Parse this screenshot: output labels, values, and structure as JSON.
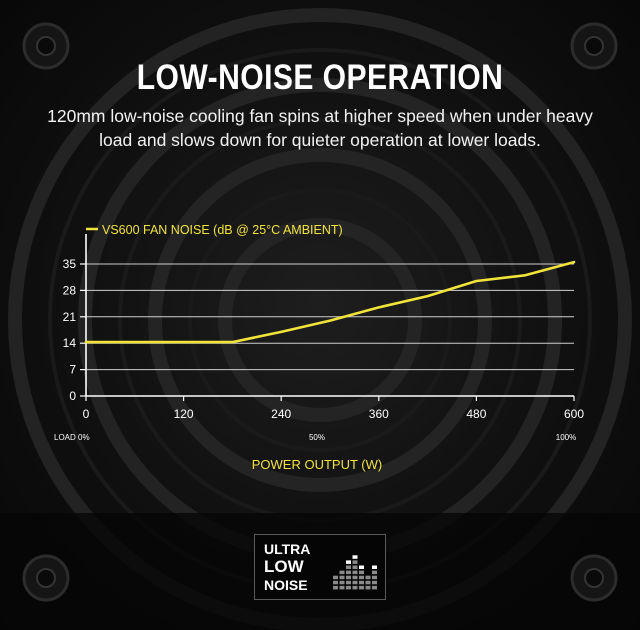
{
  "headline": "LOW-NOISE OPERATION",
  "description": "120mm low-noise cooling fan spins at higher speed when under heavy load and slows down for quieter operation at lower loads.",
  "badge": {
    "line1": "ULTRA",
    "line2": "LOW",
    "line3": "NOISE",
    "icon": "equalizer-bars-icon"
  },
  "colors": {
    "accent": "#f2e33a",
    "background": "#0c0c0c",
    "text": "#ffffff"
  },
  "chart_data": {
    "type": "line",
    "title": "VS600 FAN NOISE (dB @ 25°C AMBIENT)",
    "xlabel": "POWER OUTPUT (W)",
    "ylabel": "",
    "x": [
      0,
      60,
      120,
      180,
      240,
      300,
      360,
      420,
      480,
      540,
      600
    ],
    "series": [
      {
        "values": [
          14.3,
          14.3,
          14.3,
          14.3,
          17,
          20,
          23.5,
          26.5,
          30.5,
          32,
          35.5
        ]
      }
    ],
    "xlim": [
      0,
      600
    ],
    "ylim": [
      0,
      35
    ],
    "xticks": [
      0,
      120,
      240,
      360,
      480,
      600
    ],
    "yticks": [
      0,
      7,
      14,
      21,
      28,
      35
    ],
    "grid": true,
    "legend": "none",
    "load_labels": [
      "LOAD 0%",
      "50%",
      "100%"
    ],
    "line_color": "#f2e33a"
  }
}
